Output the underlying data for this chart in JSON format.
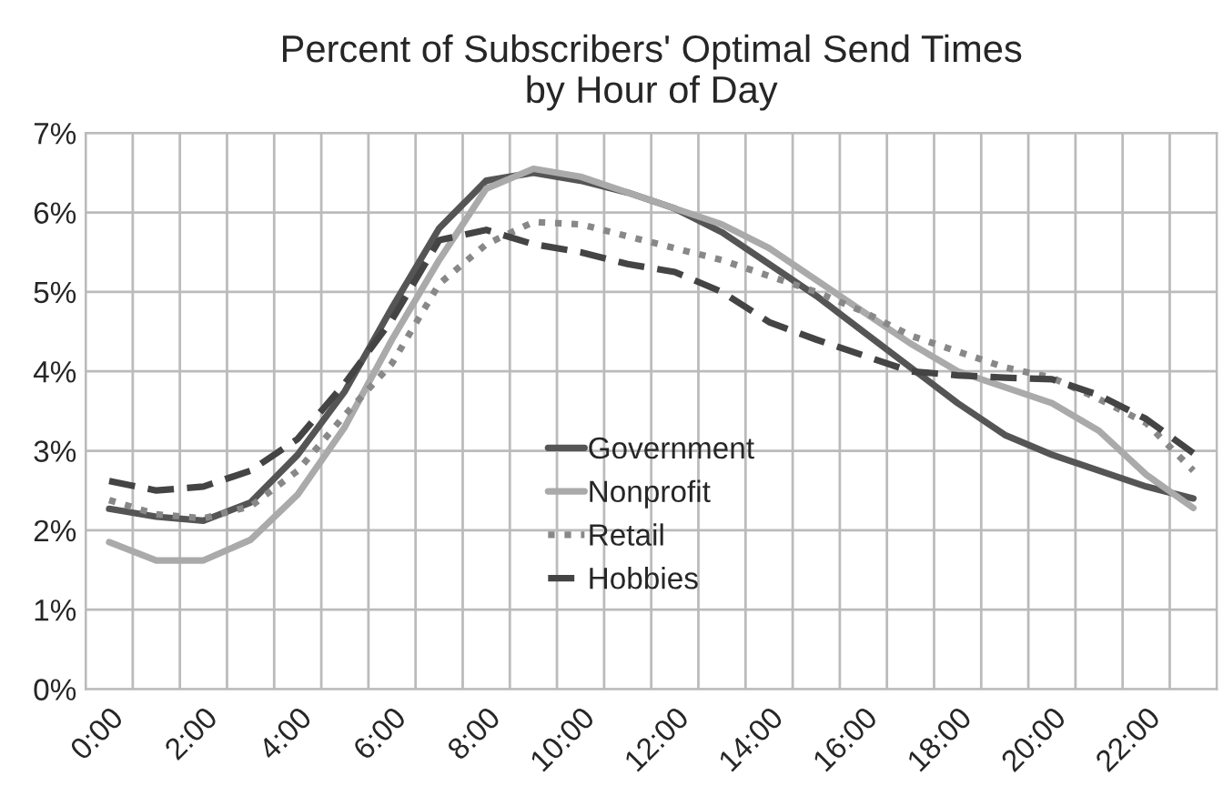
{
  "chart_data": {
    "type": "line",
    "title": "Percent of Subscribers' Optimal Send Times\nby Hour of Day",
    "categories": [
      "0:00",
      null,
      "2:00",
      null,
      "4:00",
      null,
      "6:00",
      null,
      "8:00",
      null,
      "10:00",
      null,
      "12:00",
      null,
      "14:00",
      null,
      "16:00",
      null,
      "18:00",
      null,
      "20:00",
      null,
      "22:00",
      null
    ],
    "series": [
      {
        "name": "Government",
        "color": "#555555",
        "line_style": "solid",
        "values": [
          2.27,
          2.17,
          2.12,
          2.35,
          2.95,
          3.75,
          4.8,
          5.8,
          6.4,
          6.5,
          6.4,
          6.25,
          6.05,
          5.75,
          5.35,
          4.95,
          4.5,
          4.05,
          3.6,
          3.2,
          2.95,
          2.75,
          2.55,
          2.4
        ]
      },
      {
        "name": "Nonprofit",
        "color": "#aaaaaa",
        "line_style": "solid",
        "values": [
          1.85,
          1.62,
          1.62,
          1.88,
          2.45,
          3.3,
          4.4,
          5.4,
          6.3,
          6.55,
          6.45,
          6.25,
          6.05,
          5.85,
          5.55,
          5.15,
          4.75,
          4.35,
          4.0,
          3.8,
          3.6,
          3.25,
          2.7,
          2.28
        ]
      },
      {
        "name": "Retail",
        "color": "#888888",
        "line_style": "dotted",
        "values": [
          2.38,
          2.2,
          2.15,
          2.3,
          2.75,
          3.45,
          4.1,
          5.1,
          5.6,
          5.88,
          5.85,
          5.7,
          5.55,
          5.4,
          5.2,
          5.0,
          4.75,
          4.45,
          4.25,
          4.05,
          3.92,
          3.65,
          3.35,
          2.75
        ]
      },
      {
        "name": "Hobbies",
        "color": "#444444",
        "line_style": "dashed",
        "values": [
          2.62,
          2.5,
          2.55,
          2.75,
          3.15,
          3.85,
          4.65,
          5.65,
          5.78,
          5.6,
          5.5,
          5.35,
          5.25,
          5.0,
          4.62,
          4.4,
          4.2,
          4.0,
          3.95,
          3.92,
          3.9,
          3.7,
          3.4,
          2.97
        ]
      }
    ],
    "ylim": [
      0,
      7
    ],
    "yticks": [
      {
        "value": 0,
        "label": "0%"
      },
      {
        "value": 1,
        "label": "1%"
      },
      {
        "value": 2,
        "label": "2%"
      },
      {
        "value": 3,
        "label": "3%"
      },
      {
        "value": 4,
        "label": "4%"
      },
      {
        "value": 5,
        "label": "5%"
      },
      {
        "value": 6,
        "label": "6%"
      },
      {
        "value": 7,
        "label": "7%"
      }
    ],
    "grid": true,
    "legend": "bottom",
    "marker": "none"
  }
}
